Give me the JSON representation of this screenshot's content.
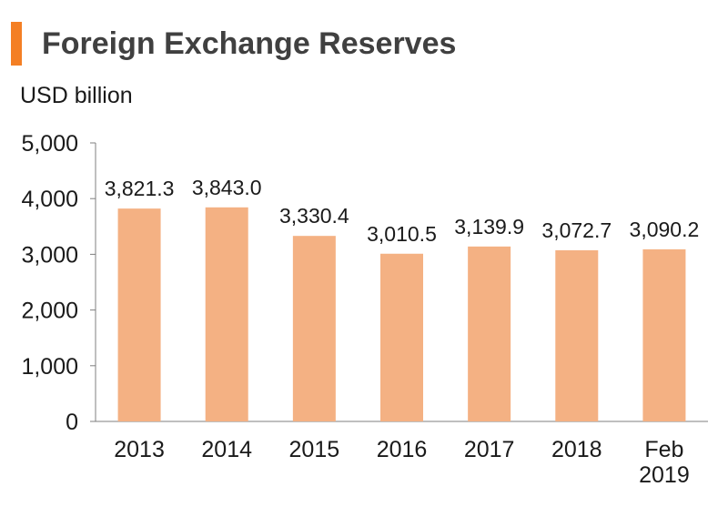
{
  "title": "Foreign Exchange Reserves",
  "unit_label": "USD billion",
  "colors": {
    "accent": "#F47F24",
    "bar": "#F4B183",
    "axis": "#7f7f7f"
  },
  "chart_data": {
    "type": "bar",
    "title": "Foreign Exchange Reserves",
    "ylabel": "USD billion",
    "categories": [
      "2013",
      "2014",
      "2015",
      "2016",
      "2017",
      "2018",
      "Feb 2019"
    ],
    "category_lines": [
      [
        "2013"
      ],
      [
        "2014"
      ],
      [
        "2015"
      ],
      [
        "2016"
      ],
      [
        "2017"
      ],
      [
        "2018"
      ],
      [
        "Feb",
        "2019"
      ]
    ],
    "values": [
      3821.3,
      3843.0,
      3330.4,
      3010.5,
      3139.9,
      3072.7,
      3090.2
    ],
    "data_labels": [
      "3,821.3",
      "3,843.0",
      "3,330.4",
      "3,010.5",
      "3,139.9",
      "3,072.7",
      "3,090.2"
    ],
    "ylim": [
      0,
      5000
    ],
    "yticks": [
      0,
      1000,
      2000,
      3000,
      4000,
      5000
    ],
    "ytick_labels": [
      "0",
      "1,000",
      "2,000",
      "3,000",
      "4,000",
      "5,000"
    ],
    "grid": false,
    "legend": "none"
  }
}
